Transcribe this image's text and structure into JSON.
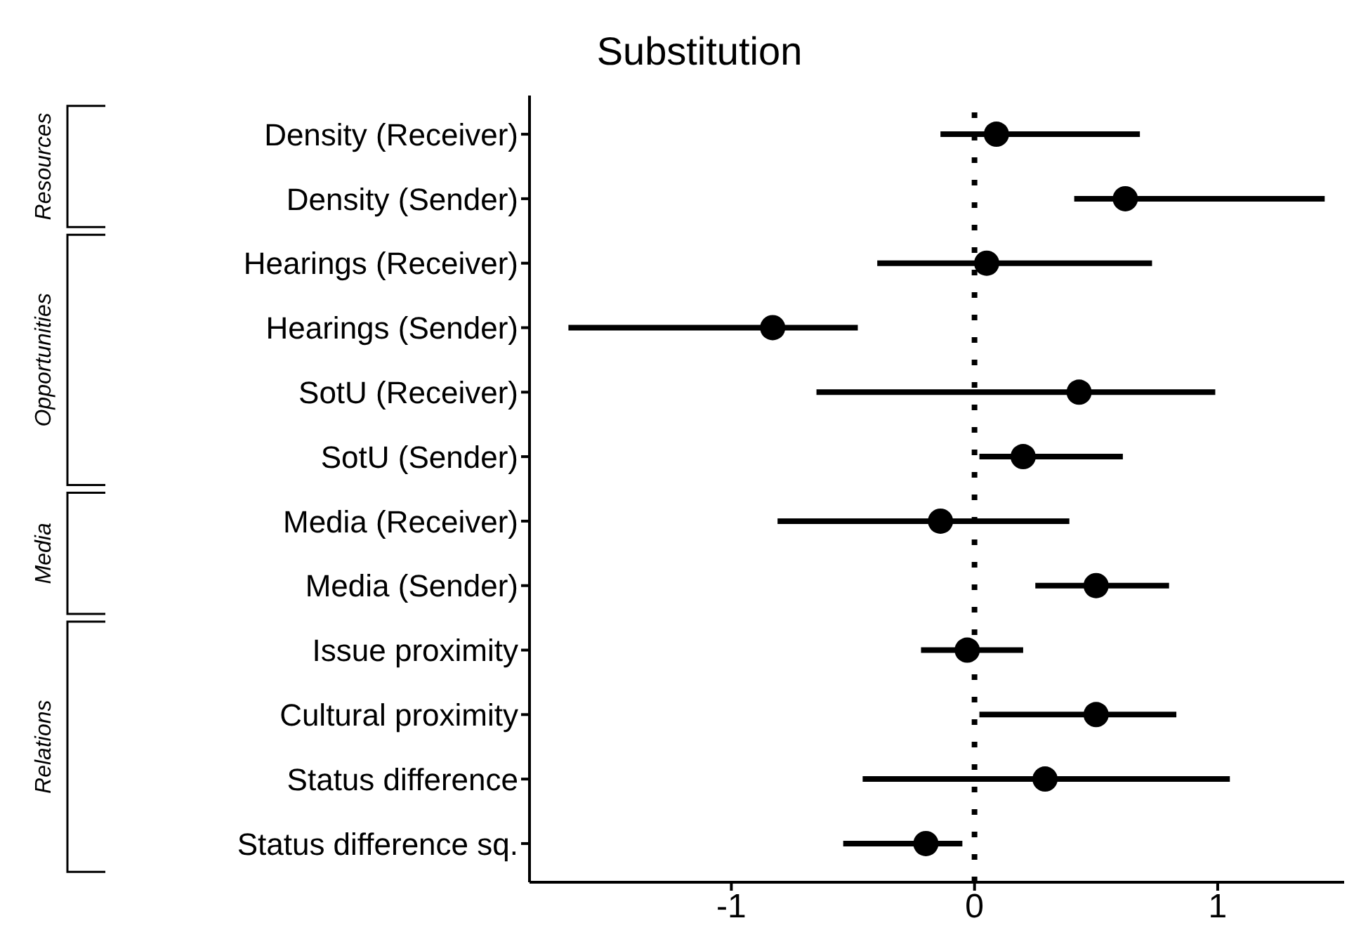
{
  "chart_data": {
    "type": "scatter",
    "title": "Substitution",
    "orientation": "horizontal",
    "categories": [
      "Density (Receiver)",
      "Density (Sender)",
      "Hearings (Receiver)",
      "Hearings (Sender)",
      "SotU (Receiver)",
      "SotU (Sender)",
      "Media (Receiver)",
      "Media (Sender)",
      "Issue proximity",
      "Cultural proximity",
      "Status difference",
      "Status difference sq."
    ],
    "values": [
      0.09,
      0.62,
      0.05,
      -0.83,
      0.43,
      0.2,
      -0.14,
      0.5,
      -0.03,
      0.5,
      0.29,
      -0.2
    ],
    "errors": [
      [
        -0.14,
        0.68
      ],
      [
        0.41,
        1.44
      ],
      [
        -0.4,
        0.73
      ],
      [
        -1.67,
        -0.48
      ],
      [
        -0.65,
        0.99
      ],
      [
        0.02,
        0.61
      ],
      [
        -0.81,
        0.39
      ],
      [
        0.25,
        0.8
      ],
      [
        -0.22,
        0.2
      ],
      [
        0.02,
        0.83
      ],
      [
        -0.46,
        1.05
      ],
      [
        -0.54,
        -0.05
      ]
    ],
    "color": "#000000",
    "marker": "circle",
    "xlim": [
      -1.83,
      1.52
    ],
    "xticks": [
      -1,
      0,
      1
    ],
    "ref_lines": [
      {
        "axis": "x",
        "value": 0,
        "line_style": "dotted",
        "color": "#000000"
      }
    ],
    "annotations": [
      "Resources",
      "Opportunities",
      "Media",
      "Relations"
    ],
    "grid": false,
    "legend": false
  }
}
